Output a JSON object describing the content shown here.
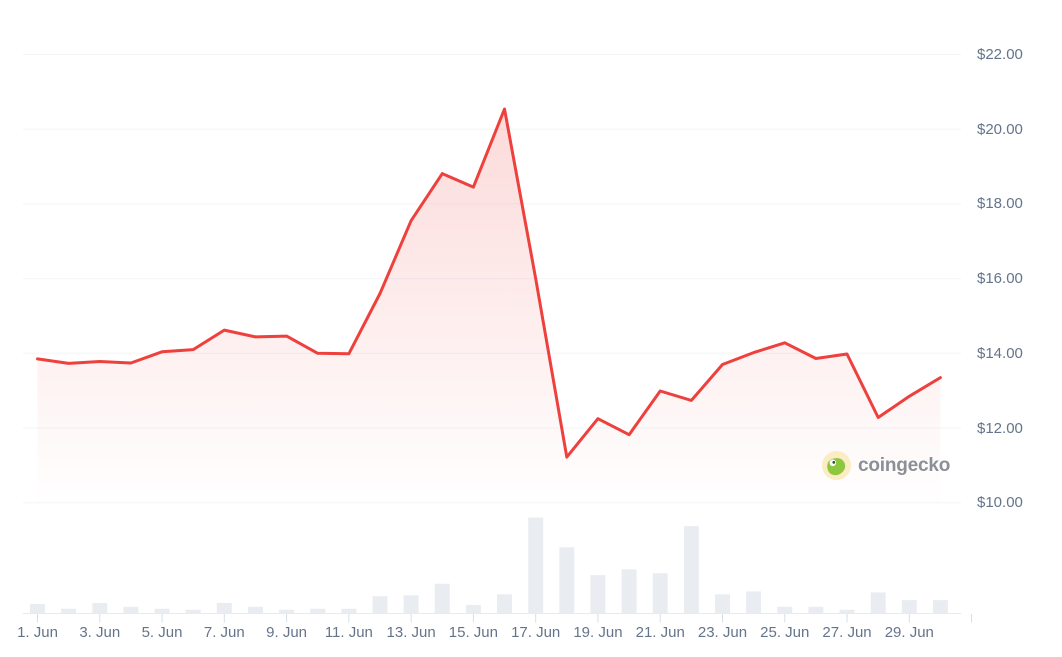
{
  "watermark": {
    "text": "coingecko"
  },
  "colors": {
    "background": "#ffffff",
    "line": "#ee403d",
    "fill_top": "rgba(238,64,61,0.22)",
    "fill_bottom": "rgba(238,64,61,0)",
    "grid": "#f3f5f7",
    "axis_text": "#64748b",
    "volume_bar": "#e9edf2",
    "baseline": "#e8ebee",
    "tick": "#d9dee4",
    "watermark_text": "#8a9096",
    "logo_circle": "#fcecc3",
    "logo_gecko": "#8dc63f",
    "logo_eye": "#ffffff",
    "logo_pupil": "#2b4a28"
  },
  "chart_data": {
    "type": "line",
    "title": "",
    "xlabel": "",
    "ylabel": "",
    "month": "Jun",
    "x_days": [
      1,
      2,
      3,
      4,
      5,
      6,
      7,
      8,
      9,
      10,
      11,
      12,
      13,
      14,
      15,
      16,
      17,
      18,
      19,
      20,
      21,
      22,
      23,
      24,
      25,
      26,
      27,
      28,
      29,
      30
    ],
    "series": [
      {
        "name": "price_usd",
        "type": "line",
        "values": [
          13.85,
          13.73,
          13.78,
          13.74,
          14.04,
          14.1,
          14.62,
          14.44,
          14.46,
          14.0,
          13.99,
          15.6,
          17.55,
          18.81,
          18.45,
          20.54,
          16.0,
          11.22,
          12.25,
          11.82,
          12.99,
          12.74,
          13.7,
          14.02,
          14.28,
          13.86,
          13.98,
          12.28,
          12.85,
          13.35
        ]
      },
      {
        "name": "volume_relative",
        "type": "bar",
        "values": [
          0.1,
          0.05,
          0.11,
          0.07,
          0.05,
          0.04,
          0.11,
          0.07,
          0.04,
          0.05,
          0.05,
          0.18,
          0.19,
          0.31,
          0.09,
          0.2,
          1.0,
          0.69,
          0.4,
          0.46,
          0.42,
          0.91,
          0.2,
          0.23,
          0.07,
          0.07,
          0.04,
          0.22,
          0.14,
          0.14
        ]
      }
    ],
    "y_ticks": [
      {
        "value": 22,
        "label": "$22.00"
      },
      {
        "value": 20,
        "label": "$20.00"
      },
      {
        "value": 18,
        "label": "$18.00"
      },
      {
        "value": 16,
        "label": "$16.00"
      },
      {
        "value": 14,
        "label": "$14.00"
      },
      {
        "value": 12,
        "label": "$12.00"
      },
      {
        "value": 10,
        "label": "$10.00"
      }
    ],
    "x_ticks": [
      {
        "day": 1,
        "label": "1. Jun"
      },
      {
        "day": 3,
        "label": "3. Jun"
      },
      {
        "day": 5,
        "label": "5. Jun"
      },
      {
        "day": 7,
        "label": "7. Jun"
      },
      {
        "day": 9,
        "label": "9. Jun"
      },
      {
        "day": 11,
        "label": "11. Jun"
      },
      {
        "day": 13,
        "label": "13. Jun"
      },
      {
        "day": 15,
        "label": "15. Jun"
      },
      {
        "day": 17,
        "label": "17. Jun"
      },
      {
        "day": 19,
        "label": "19. Jun"
      },
      {
        "day": 21,
        "label": "21. Jun"
      },
      {
        "day": 23,
        "label": "23. Jun"
      },
      {
        "day": 25,
        "label": "25. Jun"
      },
      {
        "day": 27,
        "label": "27. Jun"
      },
      {
        "day": 29,
        "label": "29. Jun"
      }
    ],
    "ylim": [
      9.5,
      22.6
    ],
    "grid": "horizontal",
    "legend": "none",
    "y_axis_position": "right"
  }
}
